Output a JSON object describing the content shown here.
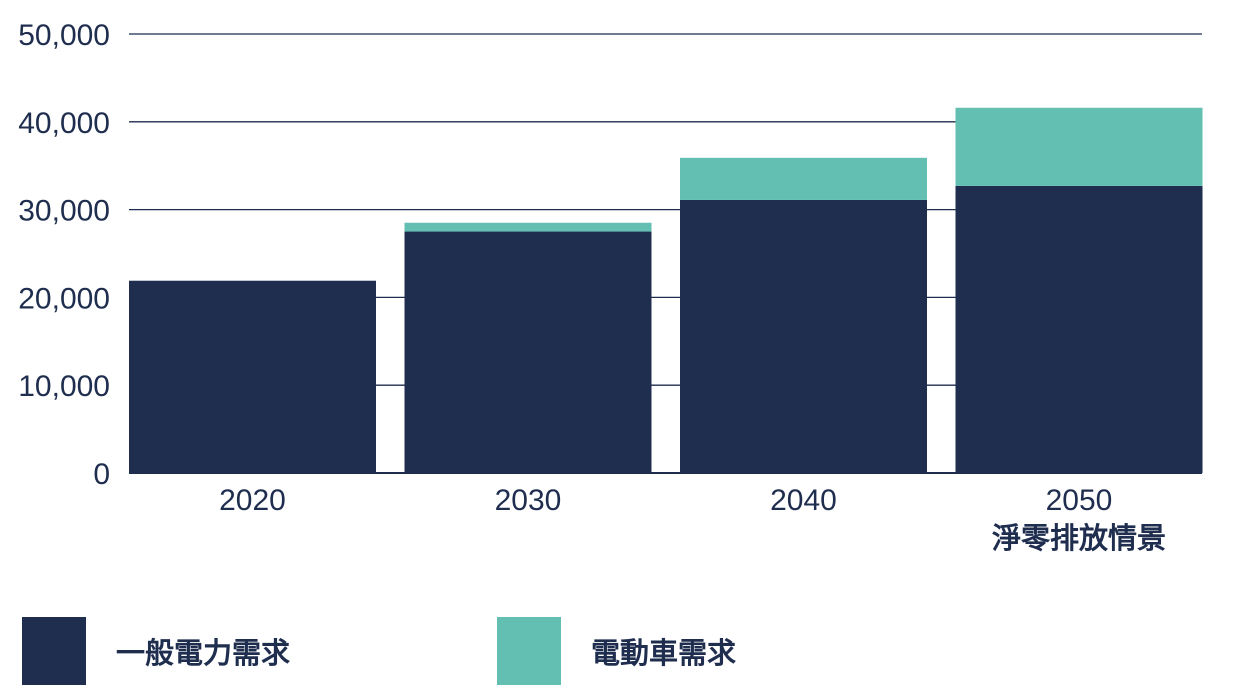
{
  "colors": {
    "general": "#1f2d4e",
    "ev": "#62bfb2",
    "grid": "#1f2d4e",
    "text": "#1f2d4e"
  },
  "chart_data": {
    "type": "bar",
    "stacked": true,
    "categories": [
      "2020",
      "2030",
      "2040",
      "2050"
    ],
    "category_sublabels": [
      "",
      "",
      "",
      "淨零排放情景"
    ],
    "series": [
      {
        "name": "一般電力需求",
        "values": [
          21900,
          27500,
          31100,
          32700
        ],
        "color": "#1f2d4e"
      },
      {
        "name": "電動車需求",
        "values": [
          0,
          1000,
          4800,
          8900
        ],
        "color": "#62bfb2"
      }
    ],
    "y_ticks": [
      "0",
      "10,000",
      "20,000",
      "30,000",
      "40,000",
      "50,000"
    ],
    "y_tick_values": [
      0,
      10000,
      20000,
      30000,
      40000,
      50000
    ],
    "ylim": [
      0,
      50000
    ],
    "grid": true,
    "legend_position": "bottom-left"
  },
  "legend": {
    "items": [
      {
        "label": "一般電力需求",
        "color": "#1f2d4e"
      },
      {
        "label": "電動車需求",
        "color": "#62bfb2"
      }
    ]
  }
}
